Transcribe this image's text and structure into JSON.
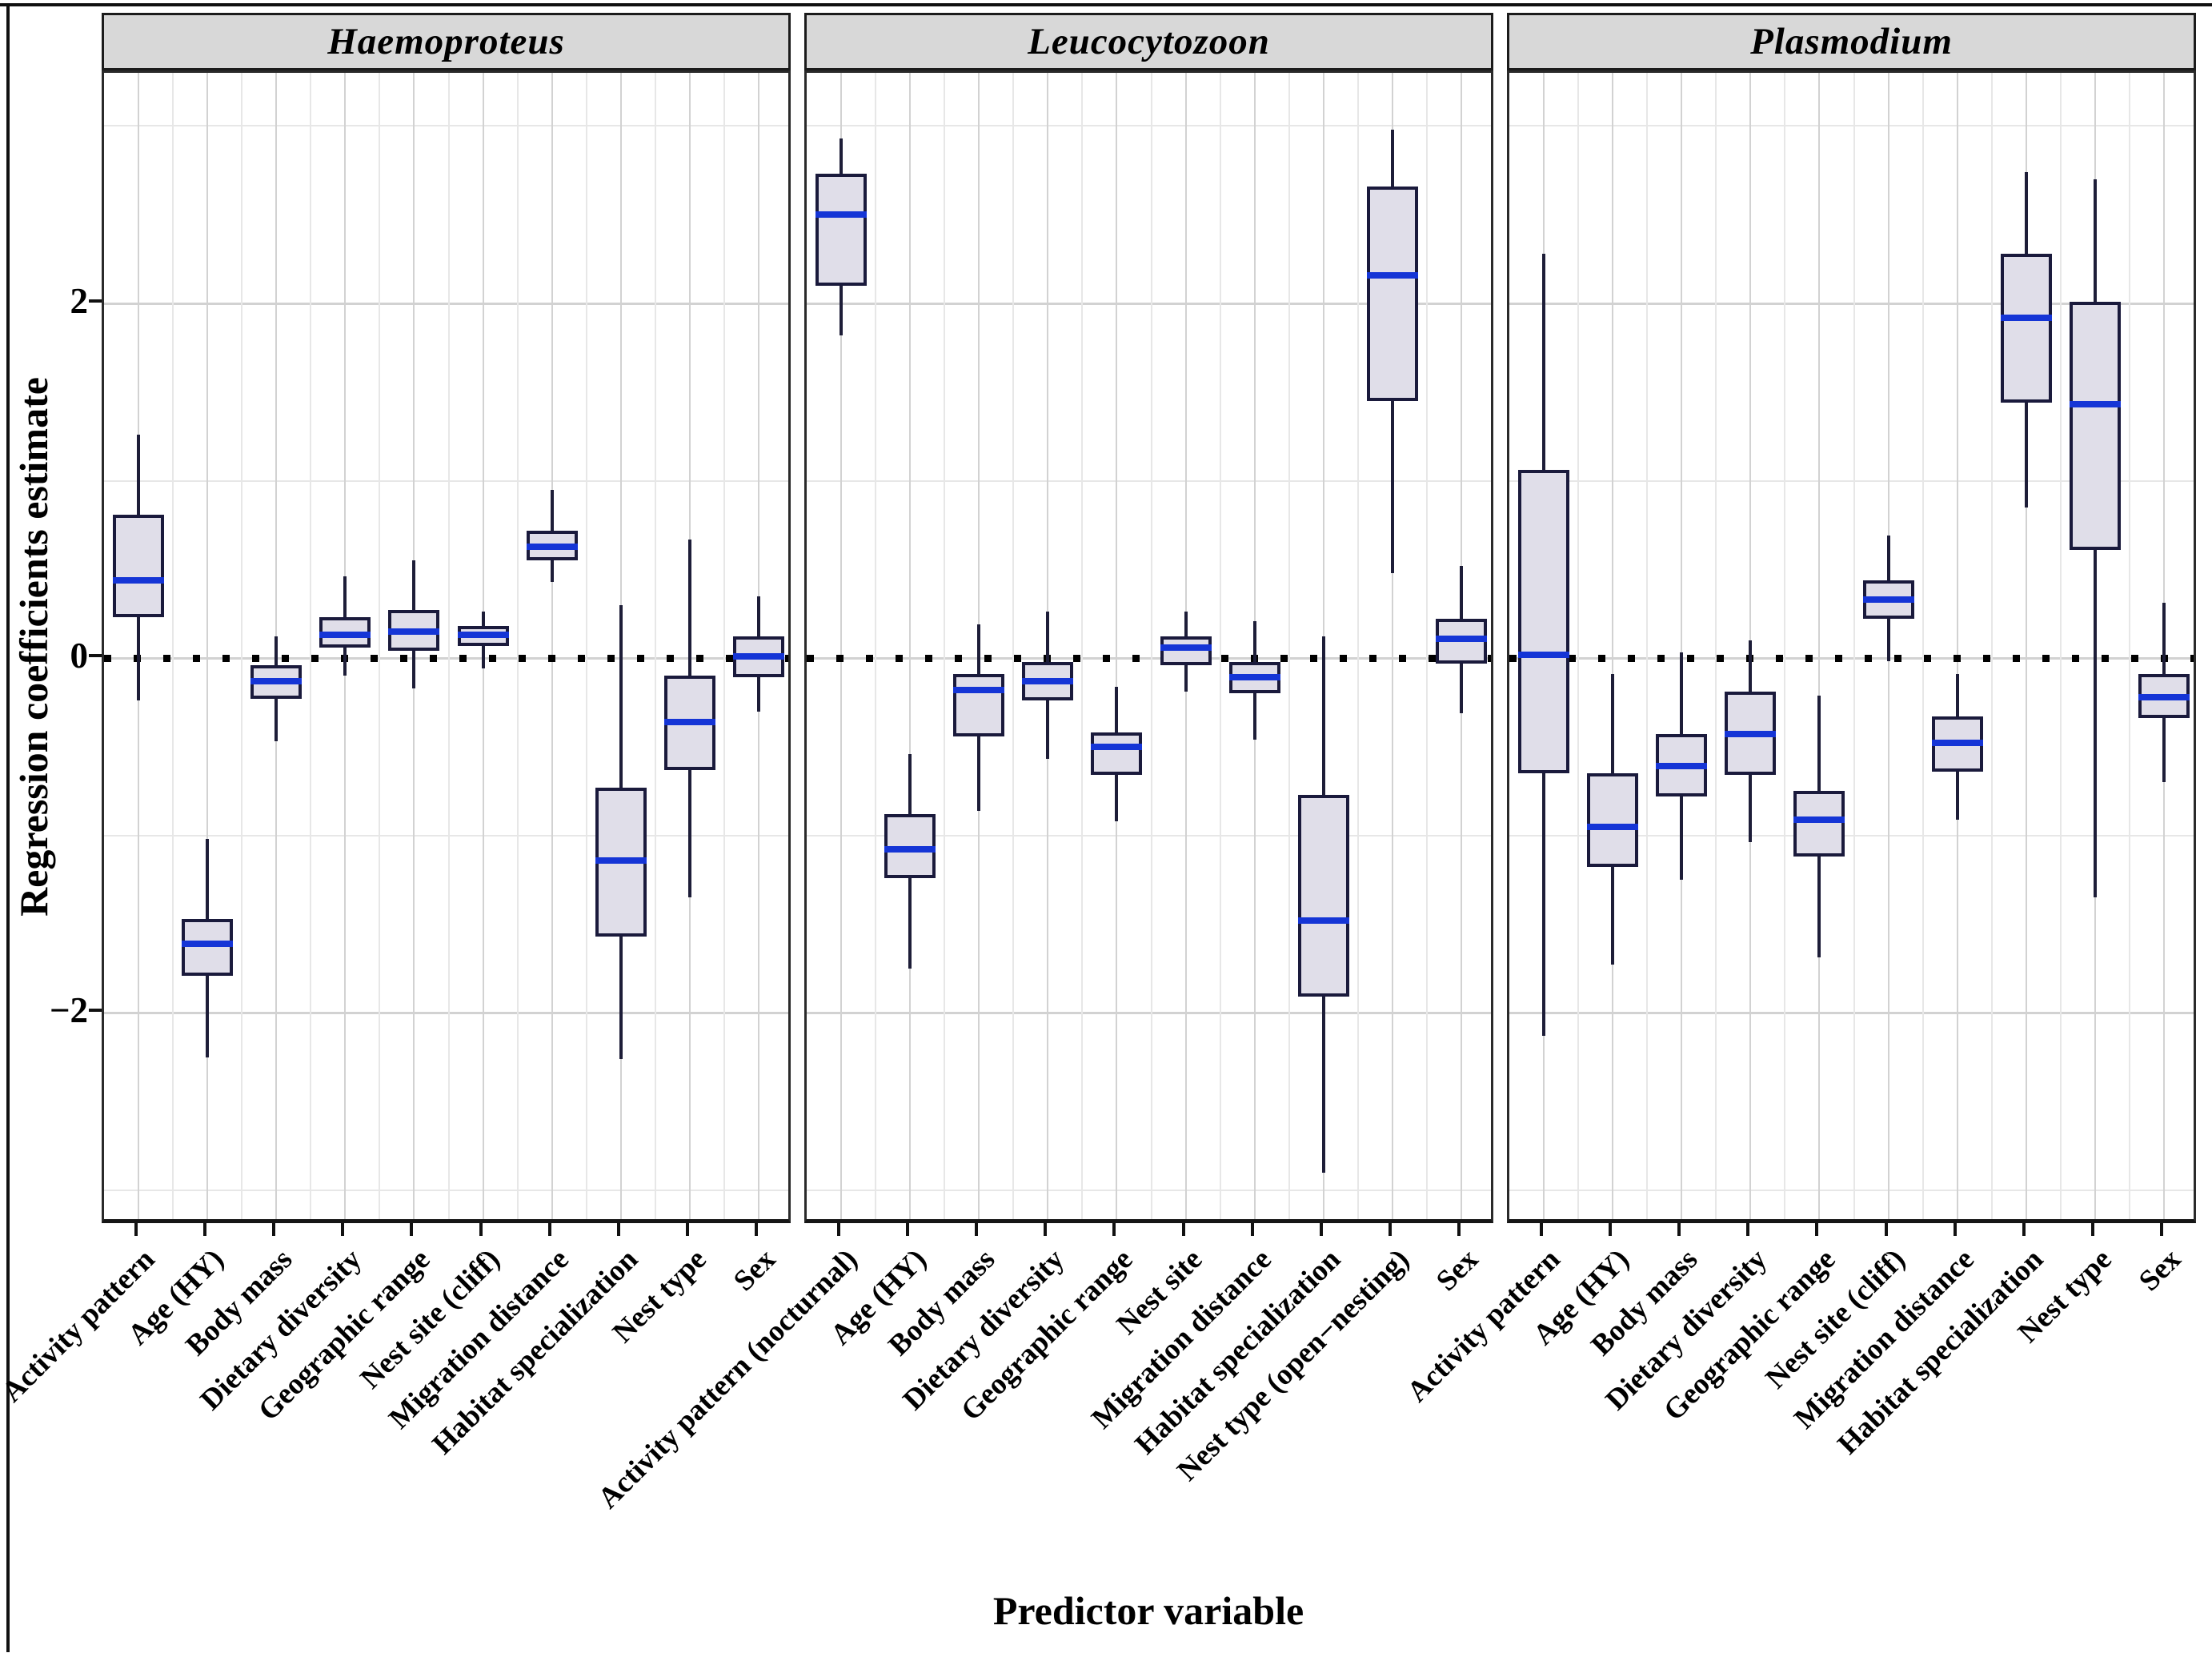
{
  "colors": {
    "box_fill": "#e0dee9",
    "box_border": "#1a1a3c",
    "median": "#1535d6",
    "whisker": "#1d1d38",
    "strip_bg": "#d8d8d8",
    "grid_major": "#d2d2d2",
    "grid_minor": "#e7e7e7",
    "reference_line": "#000000"
  },
  "chart_data": {
    "type": "boxplot",
    "title": "",
    "xlabel": "Predictor variable",
    "ylabel": "Regression coefficients estimate",
    "ylim": [
      -3.2,
      3.3
    ],
    "yticks": [
      2,
      0,
      -2
    ],
    "grid_lines": [
      3,
      2,
      1,
      0,
      -1,
      -2,
      -3
    ],
    "reference_line": 0,
    "legend_position": "none",
    "facets": [
      {
        "title": "Haemoproteus",
        "boxes": [
          {
            "category": "Activity pattern",
            "low": -0.24,
            "q1": 0.23,
            "median": 0.44,
            "q3": 0.81,
            "high": 1.26
          },
          {
            "category": "Age (HY)",
            "low": -2.25,
            "q1": -1.79,
            "median": -1.61,
            "q3": -1.47,
            "high": -1.02
          },
          {
            "category": "Body mass",
            "low": -0.47,
            "q1": -0.23,
            "median": -0.13,
            "q3": -0.04,
            "high": 0.12
          },
          {
            "category": "Dietary diversity",
            "low": -0.1,
            "q1": 0.06,
            "median": 0.13,
            "q3": 0.23,
            "high": 0.46
          },
          {
            "category": "Geographic range",
            "low": -0.17,
            "q1": 0.04,
            "median": 0.15,
            "q3": 0.27,
            "high": 0.55
          },
          {
            "category": "Nest site (cliff)",
            "low": -0.06,
            "q1": 0.07,
            "median": 0.13,
            "q3": 0.18,
            "high": 0.26
          },
          {
            "category": "Migration distance",
            "low": 0.43,
            "q1": 0.55,
            "median": 0.63,
            "q3": 0.72,
            "high": 0.95
          },
          {
            "category": "Habitat specialization",
            "low": -2.26,
            "q1": -1.57,
            "median": -1.14,
            "q3": -0.73,
            "high": 0.3
          },
          {
            "category": "Nest type",
            "low": -1.35,
            "q1": -0.63,
            "median": -0.36,
            "q3": -0.1,
            "high": 0.67
          },
          {
            "category": "Sex",
            "low": -0.3,
            "q1": -0.11,
            "median": 0.01,
            "q3": 0.12,
            "high": 0.35
          }
        ]
      },
      {
        "title": "Leucocytozoon",
        "boxes": [
          {
            "category": "Activity pattern (nocturnal)",
            "low": 1.82,
            "q1": 2.1,
            "median": 2.5,
            "q3": 2.73,
            "high": 2.93
          },
          {
            "category": "Age (HY)",
            "low": -1.75,
            "q1": -1.24,
            "median": -1.08,
            "q3": -0.88,
            "high": -0.54
          },
          {
            "category": "Body mass",
            "low": -0.86,
            "q1": -0.44,
            "median": -0.18,
            "q3": -0.09,
            "high": 0.19
          },
          {
            "category": "Dietary diversity",
            "low": -0.57,
            "q1": -0.24,
            "median": -0.13,
            "q3": -0.02,
            "high": 0.26
          },
          {
            "category": "Geographic range",
            "low": -0.92,
            "q1": -0.66,
            "median": -0.5,
            "q3": -0.42,
            "high": -0.16
          },
          {
            "category": "Nest site",
            "low": -0.19,
            "q1": -0.04,
            "median": 0.06,
            "q3": 0.12,
            "high": 0.26
          },
          {
            "category": "Migration distance",
            "low": -0.46,
            "q1": -0.2,
            "median": -0.11,
            "q3": -0.02,
            "high": 0.21
          },
          {
            "category": "Habitat specialization",
            "low": -2.9,
            "q1": -1.91,
            "median": -1.48,
            "q3": -0.77,
            "high": 0.12
          },
          {
            "category": "Nest type (open−nesting)",
            "low": 0.48,
            "q1": 1.45,
            "median": 2.16,
            "q3": 2.66,
            "high": 2.98
          },
          {
            "category": "Sex",
            "low": -0.31,
            "q1": -0.03,
            "median": 0.11,
            "q3": 0.22,
            "high": 0.52
          }
        ]
      },
      {
        "title": "Plasmodium",
        "boxes": [
          {
            "category": "Activity pattern",
            "low": -2.13,
            "q1": -0.65,
            "median": 0.02,
            "q3": 1.06,
            "high": 2.28
          },
          {
            "category": "Age (HY)",
            "low": -1.73,
            "q1": -1.18,
            "median": -0.95,
            "q3": -0.65,
            "high": -0.09
          },
          {
            "category": "Body mass",
            "low": -1.25,
            "q1": -0.78,
            "median": -0.61,
            "q3": -0.43,
            "high": 0.03
          },
          {
            "category": "Dietary diversity",
            "low": -1.04,
            "q1": -0.66,
            "median": -0.43,
            "q3": -0.19,
            "high": 0.1
          },
          {
            "category": "Geographic range",
            "low": -1.69,
            "q1": -1.12,
            "median": -0.91,
            "q3": -0.75,
            "high": -0.21
          },
          {
            "category": "Nest site (cliff)",
            "low": -0.02,
            "q1": 0.22,
            "median": 0.33,
            "q3": 0.44,
            "high": 0.69
          },
          {
            "category": "Migration distance",
            "low": -0.91,
            "q1": -0.64,
            "median": -0.48,
            "q3": -0.33,
            "high": -0.09
          },
          {
            "category": "Habitat specialization",
            "low": 0.85,
            "q1": 1.44,
            "median": 1.92,
            "q3": 2.28,
            "high": 2.74
          },
          {
            "category": "Nest type",
            "low": -1.35,
            "q1": 0.61,
            "median": 1.43,
            "q3": 2.01,
            "high": 2.7
          },
          {
            "category": "Sex",
            "low": -0.7,
            "q1": -0.34,
            "median": -0.22,
            "q3": -0.09,
            "high": 0.31
          }
        ]
      }
    ]
  }
}
